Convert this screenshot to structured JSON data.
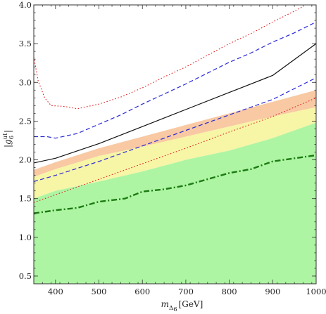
{
  "chart_data": {
    "type": "line",
    "xlabel": {
      "main": "m",
      "sub": "Δ",
      "subsub": "6",
      "unit": "[GeV]"
    },
    "ylabel": {
      "pre": "|g",
      "sup": "ut",
      "sub": "6",
      "post": "|"
    },
    "xlim": [
      350,
      1000
    ],
    "ylim": [
      0.4,
      4.0
    ],
    "xticks": [
      400,
      500,
      600,
      700,
      800,
      900,
      1000
    ],
    "xtick_labels": [
      "400",
      "500",
      "600",
      "700",
      "800",
      "900",
      "1000"
    ],
    "yticks": [
      0.5,
      1.0,
      1.5,
      2.0,
      2.5,
      3.0,
      3.5,
      4.0
    ],
    "ytick_labels": [
      "0.5",
      "1.0",
      "1.5",
      "2.0",
      "2.5",
      "3.0",
      "3.5",
      "4.0"
    ],
    "bands": [
      {
        "color": "#f8c9a3",
        "lower": [
          [
            350,
            1.78
          ],
          [
            400,
            1.88
          ],
          [
            500,
            2.05
          ],
          [
            600,
            2.17
          ],
          [
            700,
            2.3
          ],
          [
            800,
            2.43
          ],
          [
            900,
            2.56
          ],
          [
            1000,
            2.68
          ]
        ],
        "upper": [
          [
            350,
            1.87
          ],
          [
            400,
            1.97
          ],
          [
            500,
            2.15
          ],
          [
            600,
            2.3
          ],
          [
            700,
            2.45
          ],
          [
            800,
            2.6
          ],
          [
            900,
            2.75
          ],
          [
            1000,
            2.9
          ]
        ]
      },
      {
        "color": "#f7f5a6",
        "lower": [
          [
            350,
            1.5
          ],
          [
            400,
            1.6
          ],
          [
            500,
            1.72
          ],
          [
            600,
            1.85
          ],
          [
            700,
            2.0
          ],
          [
            800,
            2.12
          ],
          [
            900,
            2.28
          ],
          [
            1000,
            2.48
          ]
        ],
        "upper": [
          [
            350,
            1.78
          ],
          [
            400,
            1.88
          ],
          [
            500,
            2.05
          ],
          [
            600,
            2.17
          ],
          [
            700,
            2.3
          ],
          [
            800,
            2.43
          ],
          [
            900,
            2.56
          ],
          [
            1000,
            2.68
          ]
        ]
      },
      {
        "color": "#adf5a3",
        "lower": [
          [
            350,
            0.4
          ],
          [
            1000,
            0.4
          ]
        ],
        "upper": [
          [
            350,
            1.5
          ],
          [
            400,
            1.6
          ],
          [
            500,
            1.72
          ],
          [
            600,
            1.85
          ],
          [
            700,
            2.0
          ],
          [
            800,
            2.12
          ],
          [
            900,
            2.28
          ],
          [
            1000,
            2.48
          ]
        ]
      }
    ],
    "series": [
      {
        "color": "#e02020",
        "dash": "1.6,2.6",
        "width": 1.1,
        "points": [
          [
            350,
            3.33
          ],
          [
            360,
            3.02
          ],
          [
            375,
            2.8
          ],
          [
            390,
            2.7
          ],
          [
            420,
            2.69
          ],
          [
            450,
            2.66
          ],
          [
            500,
            2.72
          ],
          [
            550,
            2.81
          ],
          [
            600,
            2.93
          ],
          [
            650,
            3.07
          ],
          [
            700,
            3.2
          ],
          [
            750,
            3.35
          ],
          [
            800,
            3.5
          ],
          [
            850,
            3.63
          ],
          [
            900,
            3.78
          ],
          [
            950,
            3.92
          ],
          [
            970,
            3.98
          ]
        ]
      },
      {
        "color": "#2828d8",
        "dash": "6,3.5",
        "width": 1.2,
        "points": [
          [
            350,
            2.3
          ],
          [
            380,
            2.3
          ],
          [
            400,
            2.28
          ],
          [
            450,
            2.34
          ],
          [
            500,
            2.46
          ],
          [
            550,
            2.58
          ],
          [
            600,
            2.72
          ],
          [
            650,
            2.85
          ],
          [
            700,
            2.98
          ],
          [
            750,
            3.12
          ],
          [
            800,
            3.26
          ],
          [
            850,
            3.38
          ],
          [
            900,
            3.52
          ],
          [
            950,
            3.64
          ],
          [
            1000,
            3.78
          ]
        ]
      },
      {
        "color": "#111111",
        "dash": "",
        "width": 1.2,
        "points": [
          [
            350,
            1.96
          ],
          [
            400,
            2.02
          ],
          [
            500,
            2.21
          ],
          [
            600,
            2.43
          ],
          [
            700,
            2.65
          ],
          [
            800,
            2.87
          ],
          [
            900,
            3.09
          ],
          [
            1000,
            3.5
          ]
        ]
      },
      {
        "color": "#2828d8",
        "dash": "6,3.5",
        "width": 1.2,
        "points": [
          [
            350,
            1.72
          ],
          [
            400,
            1.8
          ],
          [
            500,
            1.98
          ],
          [
            600,
            2.18
          ],
          [
            700,
            2.38
          ],
          [
            800,
            2.58
          ],
          [
            900,
            2.78
          ],
          [
            1000,
            3.06
          ]
        ]
      },
      {
        "color": "#e02020",
        "dash": "1.6,2.6",
        "width": 1.1,
        "points": [
          [
            350,
            1.45
          ],
          [
            400,
            1.55
          ],
          [
            500,
            1.75
          ],
          [
            600,
            1.95
          ],
          [
            700,
            2.15
          ],
          [
            800,
            2.36
          ],
          [
            900,
            2.56
          ],
          [
            1000,
            2.8
          ]
        ]
      },
      {
        "color": "#1c7a12",
        "dash": "8,3,2,3",
        "width": 2.4,
        "points": [
          [
            350,
            1.31
          ],
          [
            400,
            1.35
          ],
          [
            450,
            1.38
          ],
          [
            500,
            1.46
          ],
          [
            560,
            1.5
          ],
          [
            600,
            1.59
          ],
          [
            650,
            1.62
          ],
          [
            700,
            1.67
          ],
          [
            750,
            1.75
          ],
          [
            800,
            1.83
          ],
          [
            850,
            1.88
          ],
          [
            900,
            1.98
          ],
          [
            950,
            2.02
          ],
          [
            1000,
            2.06
          ]
        ]
      }
    ]
  }
}
